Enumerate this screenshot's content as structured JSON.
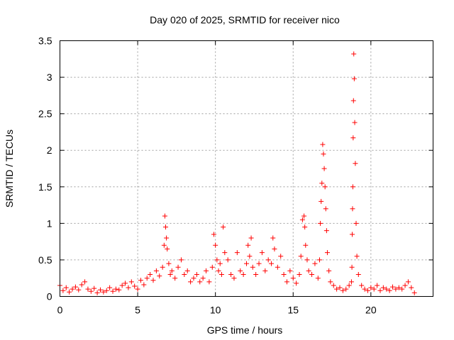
{
  "chart_data": {
    "type": "scatter",
    "title": "Day 020 of 2025, SRMTID for receiver nico",
    "xlabel": "GPS time / hours",
    "ylabel": "SRMTID / TECUs",
    "xlim": [
      0,
      24
    ],
    "ylim": [
      0,
      3.5
    ],
    "grid": true,
    "marker": "+",
    "color": "#ff0000",
    "xticks": [
      0,
      5,
      10,
      15,
      20
    ],
    "xtick_labels": [
      "0",
      "5",
      "10",
      "15",
      "20"
    ],
    "yticks": [
      0,
      0.5,
      1,
      1.5,
      2,
      2.5,
      3,
      3.5
    ],
    "ytick_labels": [
      "0",
      "0.5",
      "1",
      "1.5",
      "2",
      "2.5",
      "3",
      "3.5"
    ],
    "series": [
      {
        "name": "SRMTID",
        "x": [
          0.0,
          0.2,
          0.4,
          0.6,
          0.8,
          1.0,
          1.2,
          1.4,
          1.6,
          1.8,
          2.0,
          2.2,
          2.4,
          2.6,
          2.8,
          3.0,
          3.2,
          3.4,
          3.6,
          3.8,
          4.0,
          4.2,
          4.4,
          4.6,
          4.8,
          5.0,
          5.2,
          5.4,
          5.6,
          5.8,
          6.0,
          6.2,
          6.4,
          6.6,
          6.7,
          6.75,
          6.8,
          6.85,
          6.9,
          7.0,
          7.1,
          7.2,
          7.4,
          7.6,
          7.8,
          8.0,
          8.2,
          8.4,
          8.6,
          8.8,
          9.0,
          9.2,
          9.4,
          9.6,
          9.8,
          9.9,
          10.0,
          10.1,
          10.2,
          10.3,
          10.4,
          10.5,
          10.6,
          10.8,
          11.0,
          11.2,
          11.4,
          11.6,
          11.8,
          12.0,
          12.1,
          12.2,
          12.3,
          12.4,
          12.6,
          12.8,
          13.0,
          13.2,
          13.4,
          13.6,
          13.7,
          13.8,
          14.0,
          14.2,
          14.4,
          14.6,
          14.8,
          15.0,
          15.2,
          15.4,
          15.5,
          15.6,
          15.7,
          15.75,
          15.8,
          15.9,
          16.0,
          16.2,
          16.4,
          16.6,
          16.7,
          16.75,
          16.8,
          16.85,
          16.9,
          16.95,
          17.0,
          17.05,
          17.1,
          17.15,
          17.2,
          17.3,
          17.4,
          17.6,
          17.8,
          18.0,
          18.2,
          18.4,
          18.6,
          18.75,
          18.78,
          18.8,
          18.82,
          18.84,
          18.86,
          18.88,
          18.9,
          18.93,
          18.96,
          19.0,
          19.05,
          19.1,
          19.2,
          19.4,
          19.6,
          19.8,
          20.0,
          20.2,
          20.4,
          20.6,
          20.8,
          21.0,
          21.2,
          21.4,
          21.6,
          21.8,
          22.0,
          22.2,
          22.4,
          22.6,
          22.8
        ],
        "y": [
          0.15,
          0.08,
          0.12,
          0.06,
          0.1,
          0.13,
          0.09,
          0.16,
          0.2,
          0.1,
          0.07,
          0.11,
          0.05,
          0.09,
          0.06,
          0.08,
          0.12,
          0.07,
          0.1,
          0.09,
          0.15,
          0.18,
          0.12,
          0.2,
          0.14,
          0.1,
          0.22,
          0.16,
          0.25,
          0.3,
          0.22,
          0.35,
          0.28,
          0.4,
          0.7,
          1.1,
          0.95,
          0.8,
          0.65,
          0.45,
          0.3,
          0.35,
          0.25,
          0.4,
          0.5,
          0.3,
          0.35,
          0.2,
          0.25,
          0.3,
          0.2,
          0.25,
          0.35,
          0.2,
          0.4,
          0.85,
          0.7,
          0.5,
          0.35,
          0.45,
          0.3,
          0.95,
          0.6,
          0.5,
          0.3,
          0.25,
          0.6,
          0.35,
          0.3,
          0.45,
          0.7,
          0.55,
          0.8,
          0.4,
          0.3,
          0.45,
          0.6,
          0.35,
          0.5,
          0.45,
          0.8,
          0.65,
          0.4,
          0.55,
          0.3,
          0.2,
          0.35,
          0.25,
          0.18,
          0.3,
          0.55,
          1.05,
          1.1,
          0.95,
          0.7,
          0.5,
          0.35,
          0.3,
          0.45,
          0.25,
          0.5,
          1.0,
          1.3,
          1.55,
          2.08,
          1.95,
          1.75,
          1.5,
          1.2,
          0.9,
          0.6,
          0.35,
          0.2,
          0.15,
          0.1,
          0.12,
          0.08,
          0.1,
          0.15,
          0.2,
          0.4,
          0.85,
          1.2,
          1.5,
          2.17,
          2.68,
          3.32,
          2.98,
          2.38,
          1.82,
          1.0,
          0.55,
          0.3,
          0.15,
          0.1,
          0.08,
          0.12,
          0.1,
          0.15,
          0.08,
          0.12,
          0.1,
          0.08,
          0.13,
          0.1,
          0.12,
          0.1,
          0.15,
          0.2,
          0.12,
          0.05
        ]
      }
    ]
  }
}
